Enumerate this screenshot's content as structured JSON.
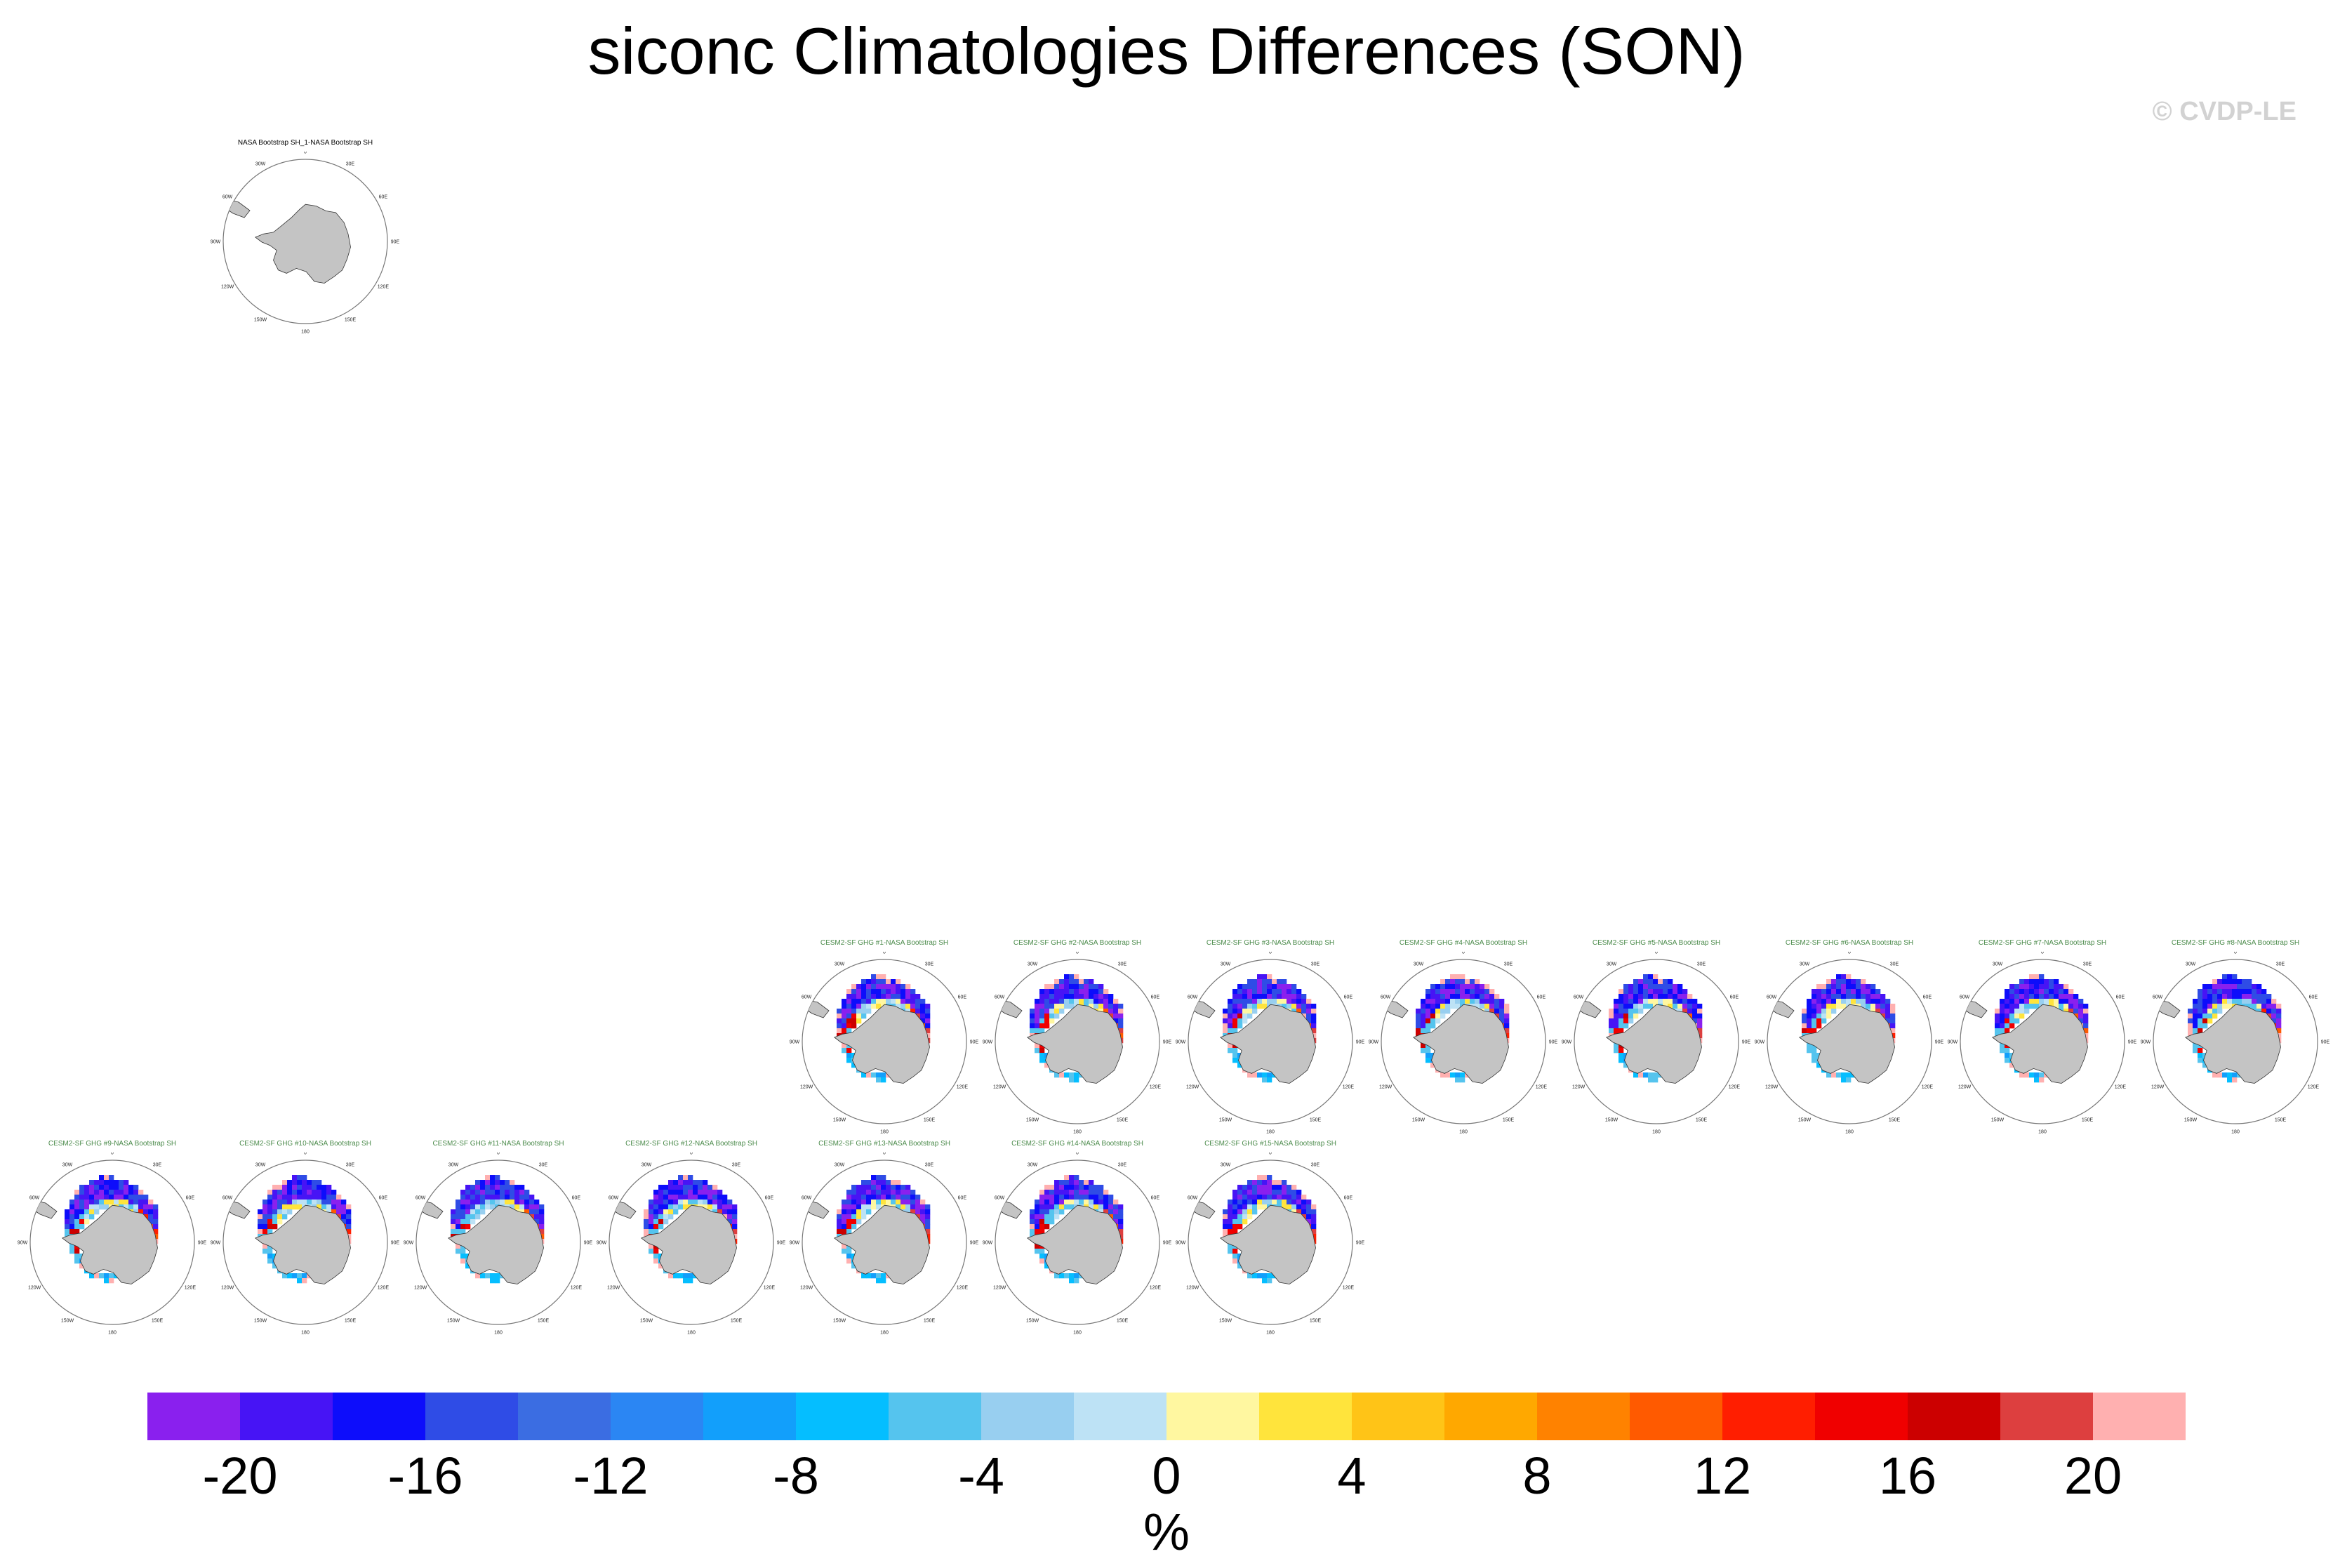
{
  "title": "siconc Climatologies Differences (SON)",
  "watermark": "© CVDP-LE",
  "colorbar": {
    "units": "%",
    "levels": [
      -22,
      -20,
      -18,
      -16,
      -14,
      -12,
      -10,
      -8,
      -6,
      -4,
      -2,
      0,
      2,
      4,
      6,
      8,
      10,
      12,
      14,
      16,
      18,
      20,
      22
    ],
    "tick_labels": [
      "-20",
      "-16",
      "-12",
      "-8",
      "-4",
      "0",
      "4",
      "8",
      "12",
      "16",
      "20"
    ],
    "tick_values": [
      -20,
      -16,
      -12,
      -8,
      -4,
      0,
      4,
      8,
      12,
      16,
      20
    ],
    "colors": [
      "#8a20ee",
      "#4714f5",
      "#0d0dfb",
      "#2f4ce6",
      "#3b6de2",
      "#2b86f3",
      "#129ffb",
      "#05beff",
      "#55c4ee",
      "#98cff0",
      "#bde2f5",
      "#fff7a0",
      "#ffe43c",
      "#ffc417",
      "#ffa800",
      "#ff8200",
      "#ff5a00",
      "#ff1e00",
      "#f00000",
      "#cc0000",
      "#dd3f3f",
      "#ffb0b0"
    ]
  },
  "chart_data": {
    "type": "heatmap",
    "title": "siconc Climatologies Differences (SON)",
    "units": "%",
    "projection": "south polar stereographic",
    "longitude_labels": [
      "0",
      "30E",
      "60E",
      "90E",
      "120E",
      "150E",
      "180",
      "150W",
      "120W",
      "90W",
      "60W",
      "30W"
    ],
    "panels": [
      {
        "title": "NASA Bootstrap SH_1-NASA Bootstrap SH",
        "kind": "reference"
      },
      {
        "title": "CESM2-SF GHG #1-NASA Bootstrap SH",
        "kind": "member",
        "variant": 0
      },
      {
        "title": "CESM2-SF GHG #2-NASA Bootstrap SH",
        "kind": "member",
        "variant": 1
      },
      {
        "title": "CESM2-SF GHG #3-NASA Bootstrap SH",
        "kind": "member",
        "variant": 2
      },
      {
        "title": "CESM2-SF GHG #4-NASA Bootstrap SH",
        "kind": "member",
        "variant": 3
      },
      {
        "title": "CESM2-SF GHG #5-NASA Bootstrap SH",
        "kind": "member",
        "variant": 4
      },
      {
        "title": "CESM2-SF GHG #6-NASA Bootstrap SH",
        "kind": "member",
        "variant": 5
      },
      {
        "title": "CESM2-SF GHG #7-NASA Bootstrap SH",
        "kind": "member",
        "variant": 6
      },
      {
        "title": "CESM2-SF GHG #8-NASA Bootstrap SH",
        "kind": "member",
        "variant": 7
      },
      {
        "title": "CESM2-SF GHG #9-NASA Bootstrap SH",
        "kind": "member",
        "variant": 8
      },
      {
        "title": "CESM2-SF GHG #10-NASA Bootstrap SH",
        "kind": "member",
        "variant": 9
      },
      {
        "title": "CESM2-SF GHG #11-NASA Bootstrap SH",
        "kind": "member",
        "variant": 10
      },
      {
        "title": "CESM2-SF GHG #12-NASA Bootstrap SH",
        "kind": "member",
        "variant": 11
      },
      {
        "title": "CESM2-SF GHG #13-NASA Bootstrap SH",
        "kind": "member",
        "variant": 12
      },
      {
        "title": "CESM2-SF GHG #14-NASA Bootstrap SH",
        "kind": "member",
        "variant": 13
      },
      {
        "title": "CESM2-SF GHG #15-NASA Bootstrap SH",
        "kind": "member",
        "variant": 14
      }
    ],
    "panel_title_colors": {
      "reference": "#000000",
      "member": "#4a8a4a"
    }
  }
}
